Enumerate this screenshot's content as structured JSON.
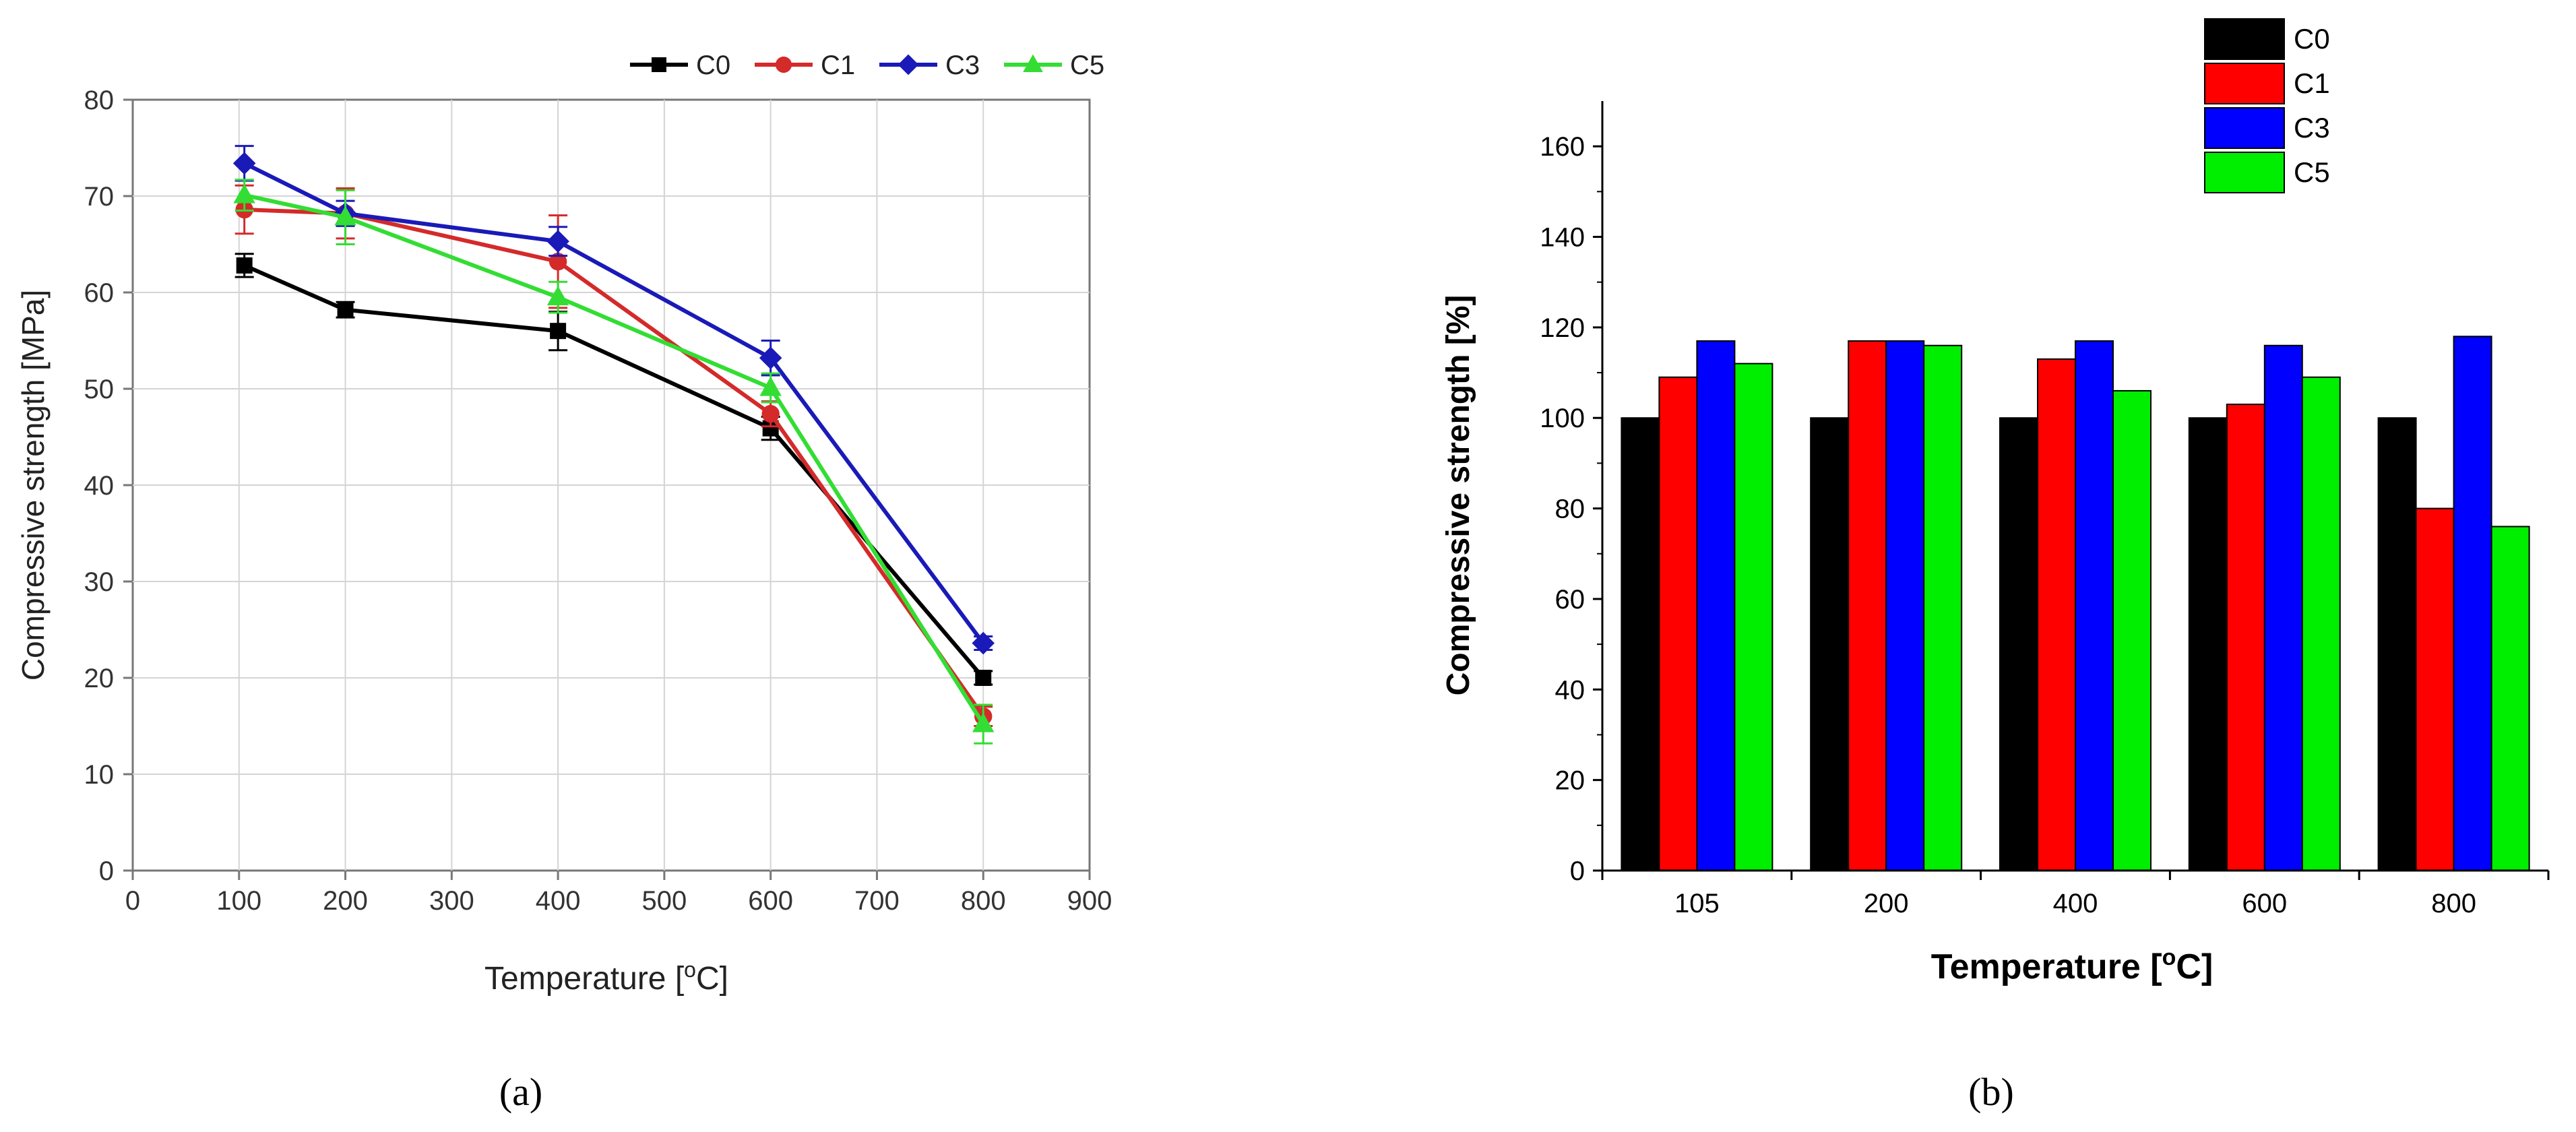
{
  "chart_data": [
    {
      "type": "line",
      "panel_label": "a",
      "xlabel_main": "Temperature [",
      "xlabel_sup": "o",
      "xlabel_end": "C]",
      "ylabel": "Compressive strength [MPa]",
      "xlim": [
        0,
        900
      ],
      "ylim": [
        0,
        80
      ],
      "xticks": [
        0,
        100,
        200,
        300,
        400,
        500,
        600,
        700,
        800,
        900
      ],
      "yticks": [
        0,
        10,
        20,
        30,
        40,
        50,
        60,
        70,
        80
      ],
      "grid": true,
      "legend": "top",
      "series": [
        {
          "name": "C0",
          "color": "#000000",
          "marker": "square",
          "x": [
            105,
            200,
            400,
            600,
            800
          ],
          "y": [
            62.8,
            58.2,
            56.0,
            45.9,
            20.0
          ],
          "err": [
            1.2,
            0.8,
            2.0,
            1.2,
            0.7
          ]
        },
        {
          "name": "C1",
          "color": "#d42a2a",
          "marker": "circle",
          "x": [
            105,
            200,
            400,
            600,
            800
          ],
          "y": [
            68.6,
            68.2,
            63.2,
            47.4,
            16.0
          ],
          "err": [
            2.5,
            2.6,
            4.8,
            1.3,
            1.0
          ]
        },
        {
          "name": "C3",
          "color": "#1a1ab8",
          "marker": "diamond",
          "x": [
            105,
            200,
            400,
            600,
            800
          ],
          "y": [
            73.4,
            68.2,
            65.3,
            53.2,
            23.6
          ],
          "err": [
            1.8,
            1.3,
            1.5,
            1.8,
            0.7
          ]
        },
        {
          "name": "C5",
          "color": "#33dd33",
          "marker": "triangle",
          "x": [
            105,
            200,
            400,
            600,
            800
          ],
          "y": [
            70.1,
            67.8,
            59.5,
            50.1,
            15.2
          ],
          "err": [
            1.6,
            2.8,
            1.6,
            1.5,
            2.0
          ]
        }
      ]
    },
    {
      "type": "bar",
      "panel_label": "b",
      "xlabel_main": "Temperature [",
      "xlabel_sup": "o",
      "xlabel_end": "C]",
      "ylabel": "Compressive  strength [%]",
      "categories": [
        "105",
        "200",
        "400",
        "600",
        "800"
      ],
      "ylim": [
        0,
        170
      ],
      "yticks": [
        0,
        20,
        40,
        60,
        80,
        100,
        120,
        140,
        160
      ],
      "legend": "top-right",
      "series": [
        {
          "name": "C0",
          "color": "#000000",
          "values": [
            100,
            100,
            100,
            100,
            100
          ]
        },
        {
          "name": "C1",
          "color": "#ff0000",
          "values": [
            109,
            117,
            113,
            103,
            80
          ]
        },
        {
          "name": "C3",
          "color": "#0000ff",
          "values": [
            117,
            117,
            117,
            116,
            118
          ]
        },
        {
          "name": "C5",
          "color": "#00ee00",
          "values": [
            112,
            116,
            106,
            109,
            76
          ]
        }
      ]
    }
  ],
  "captions": {
    "a": "(a)",
    "b": "(b)"
  }
}
